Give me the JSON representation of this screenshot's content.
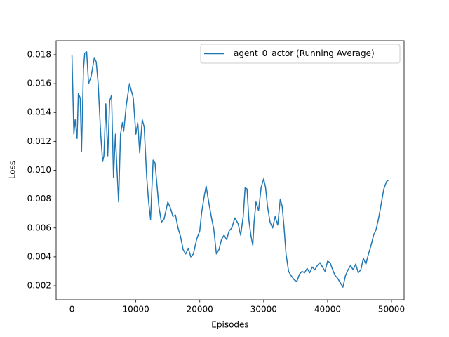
{
  "chart_data": {
    "type": "line",
    "xlabel": "Episodes",
    "ylabel": "Loss",
    "x": [
      0,
      300,
      500,
      800,
      1000,
      1300,
      1500,
      1800,
      2000,
      2300,
      2600,
      3000,
      3500,
      3800,
      4100,
      4500,
      4800,
      5000,
      5300,
      5600,
      5900,
      6200,
      6500,
      6800,
      7000,
      7300,
      7600,
      7900,
      8100,
      8500,
      9000,
      9300,
      9600,
      10000,
      10300,
      10600,
      11000,
      11300,
      11700,
      12000,
      12300,
      12700,
      13000,
      13300,
      13600,
      14000,
      14400,
      15000,
      15400,
      15800,
      16200,
      16600,
      17000,
      17400,
      17800,
      18200,
      18600,
      19000,
      19500,
      20000,
      20300,
      20700,
      21000,
      21400,
      21800,
      22200,
      22600,
      23000,
      23400,
      23800,
      24200,
      24600,
      25000,
      25500,
      26000,
      26400,
      26800,
      27100,
      27400,
      27700,
      28000,
      28300,
      28500,
      28800,
      29200,
      29600,
      30000,
      30300,
      30600,
      31000,
      31400,
      31800,
      32200,
      32600,
      32900,
      33200,
      33500,
      33900,
      34300,
      34800,
      35200,
      35600,
      36000,
      36400,
      36800,
      37200,
      37600,
      38000,
      38400,
      38800,
      39200,
      39600,
      40000,
      40400,
      40800,
      41200,
      41600,
      42000,
      42400,
      42800,
      43200,
      43600,
      44000,
      44400,
      44800,
      45200,
      45600,
      46000,
      46400,
      46800,
      47200,
      47600,
      48000,
      48400,
      48800,
      49200,
      49500
    ],
    "series": [
      {
        "name": "agent_0_actor (Running Average)",
        "color": "#1f77b4",
        "values": [
          0.018,
          0.0125,
          0.0135,
          0.0122,
          0.0153,
          0.015,
          0.0113,
          0.017,
          0.0181,
          0.0182,
          0.016,
          0.0165,
          0.0178,
          0.0175,
          0.016,
          0.0125,
          0.0106,
          0.011,
          0.0146,
          0.011,
          0.0148,
          0.0152,
          0.0095,
          0.0125,
          0.0105,
          0.0078,
          0.0125,
          0.0133,
          0.0127,
          0.0145,
          0.016,
          0.0155,
          0.015,
          0.0125,
          0.0133,
          0.0112,
          0.0135,
          0.013,
          0.0095,
          0.0078,
          0.0066,
          0.0107,
          0.0105,
          0.009,
          0.0075,
          0.0064,
          0.0066,
          0.0078,
          0.0074,
          0.0068,
          0.0069,
          0.006,
          0.0054,
          0.0045,
          0.0042,
          0.0046,
          0.004,
          0.0042,
          0.0052,
          0.0058,
          0.0071,
          0.0082,
          0.0089,
          0.0078,
          0.0068,
          0.0059,
          0.0042,
          0.0045,
          0.0052,
          0.0055,
          0.0052,
          0.0058,
          0.006,
          0.0067,
          0.0063,
          0.0055,
          0.0068,
          0.0088,
          0.0087,
          0.0065,
          0.0055,
          0.0048,
          0.0064,
          0.0078,
          0.0072,
          0.0088,
          0.0094,
          0.0088,
          0.0075,
          0.0064,
          0.006,
          0.0068,
          0.0062,
          0.008,
          0.0075,
          0.006,
          0.0042,
          0.003,
          0.0027,
          0.0024,
          0.0023,
          0.0028,
          0.003,
          0.0029,
          0.0032,
          0.0029,
          0.0033,
          0.0031,
          0.0034,
          0.0036,
          0.0033,
          0.003,
          0.0037,
          0.0036,
          0.0031,
          0.0027,
          0.0025,
          0.0022,
          0.0019,
          0.0027,
          0.0031,
          0.0034,
          0.0031,
          0.0035,
          0.0029,
          0.0031,
          0.0039,
          0.0035,
          0.0042,
          0.0048,
          0.0055,
          0.0059,
          0.0067,
          0.0077,
          0.0087,
          0.0092,
          0.0093
        ]
      }
    ],
    "xlim": [
      -2475,
      51975
    ],
    "xticks": [
      0,
      10000,
      20000,
      30000,
      40000,
      50000
    ],
    "ylim": [
      0.00103,
      0.01897
    ],
    "yticks": [
      0.002,
      0.004,
      0.006,
      0.008,
      {
        "value": 0.01,
        "label": "0.010"
      },
      0.012,
      0.014,
      0.016,
      0.018
    ],
    "grid": false,
    "legend": "upper right"
  }
}
